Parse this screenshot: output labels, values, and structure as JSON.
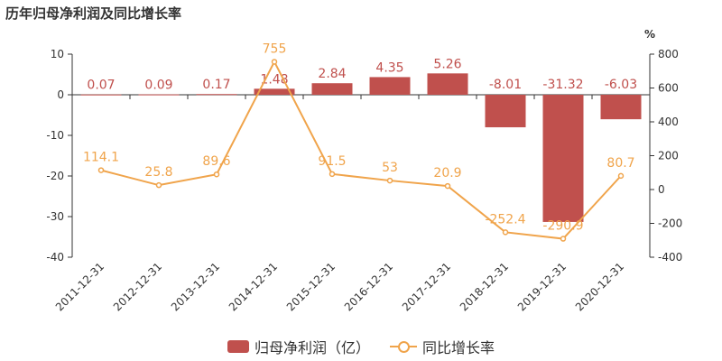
{
  "title": "历年归母净利润及同比增长率",
  "chart_data": {
    "type": "bar",
    "categories": [
      "2011-12-31",
      "2012-12-31",
      "2013-12-31",
      "2014-12-31",
      "2015-12-31",
      "2016-12-31",
      "2017-12-31",
      "2018-12-31",
      "2019-12-31",
      "2020-12-31"
    ],
    "series": [
      {
        "name": "归母净利润（亿）",
        "type": "bar",
        "axis": "left",
        "color": "#c0504d",
        "values": [
          0.07,
          0.09,
          0.17,
          1.48,
          2.84,
          4.35,
          5.26,
          -8.01,
          -31.32,
          -6.03
        ],
        "labels": [
          "0.07",
          "0.09",
          "0.17",
          "1.48",
          "2.84",
          "4.35",
          "5.26",
          "-8.01",
          "-31.32",
          "-6.03"
        ]
      },
      {
        "name": "同比增长率",
        "type": "line",
        "axis": "right",
        "color": "#f0a44b",
        "values": [
          114.1,
          25.8,
          89.6,
          755,
          91.5,
          53,
          20.9,
          -252.4,
          -290.9,
          80.7
        ],
        "labels": [
          "114.1",
          "25.8",
          "89.6",
          "755",
          "91.5",
          "53",
          "20.9",
          "-252.4",
          "-290.9",
          "80.7"
        ]
      }
    ],
    "y_left": {
      "min": -40,
      "max": 10,
      "ticks": [
        10,
        0,
        -10,
        -20,
        -30,
        -40
      ]
    },
    "y_right": {
      "label": "%",
      "min": -400,
      "max": 800,
      "ticks": [
        800,
        600,
        400,
        200,
        0,
        -200,
        -400
      ]
    },
    "legend_position": "bottom-center"
  }
}
